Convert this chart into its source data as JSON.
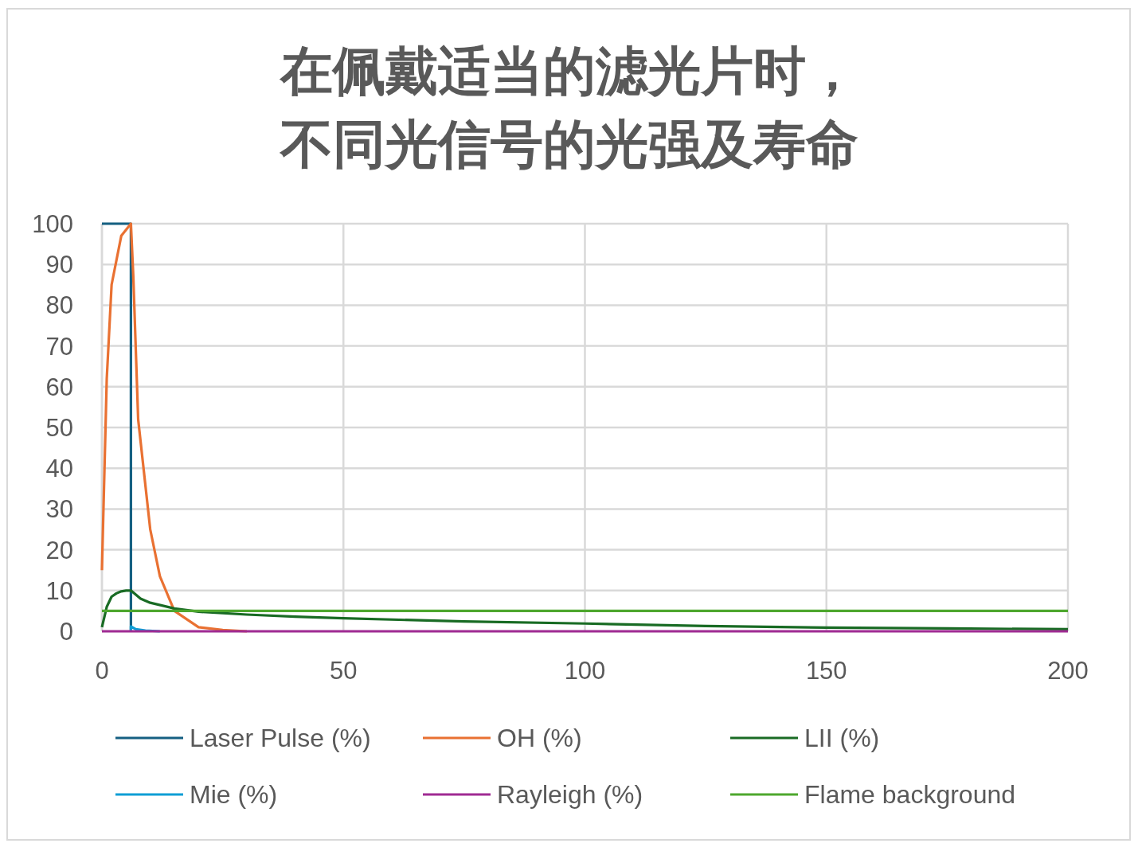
{
  "chart_data": {
    "type": "line",
    "title": "在佩戴适当的滤光片时，不同光信号的光强及寿命",
    "xlim": [
      0,
      200
    ],
    "ylim": [
      0,
      100
    ],
    "xticks": [
      0,
      50,
      100,
      150,
      200
    ],
    "yticks": [
      0,
      10,
      20,
      30,
      40,
      50,
      60,
      70,
      80,
      90,
      100
    ],
    "grid": true,
    "legend": "bottom",
    "series": [
      {
        "name": "Laser Pulse (%)",
        "color": "#156082",
        "x": [
          0,
          6,
          6
        ],
        "values": [
          100,
          100,
          0
        ]
      },
      {
        "name": "OH (%)",
        "color": "#e97132",
        "x": [
          0,
          1,
          2,
          4,
          6,
          6.5,
          7.5,
          10,
          12,
          15,
          20,
          25,
          30
        ],
        "values": [
          15,
          62,
          85,
          97,
          100,
          87,
          52,
          25,
          13.5,
          5,
          1,
          0.3,
          0
        ]
      },
      {
        "name": "LII (%)",
        "color": "#196b24",
        "x": [
          0,
          1,
          2,
          3,
          4,
          5,
          6,
          8,
          10,
          15,
          20,
          30,
          40,
          50,
          75,
          100,
          125,
          150,
          175,
          200
        ],
        "values": [
          1,
          6,
          8.5,
          9.3,
          9.8,
          10,
          10,
          8,
          7,
          5.6,
          4.8,
          4.1,
          3.6,
          3.2,
          2.4,
          1.9,
          1.3,
          0.9,
          0.7,
          0.5
        ]
      },
      {
        "name": "Mie (%)",
        "color": "#0f9ed5",
        "x": [
          6,
          6,
          7,
          9,
          12
        ],
        "values": [
          0,
          1.2,
          0.5,
          0.2,
          0
        ]
      },
      {
        "name": "Rayleigh (%)",
        "color": "#a02b93",
        "x": [
          0,
          200
        ],
        "values": [
          0,
          0
        ]
      },
      {
        "name": "Flame background",
        "color": "#4ea72e",
        "x": [
          0,
          200
        ],
        "values": [
          5,
          5
        ]
      }
    ]
  }
}
